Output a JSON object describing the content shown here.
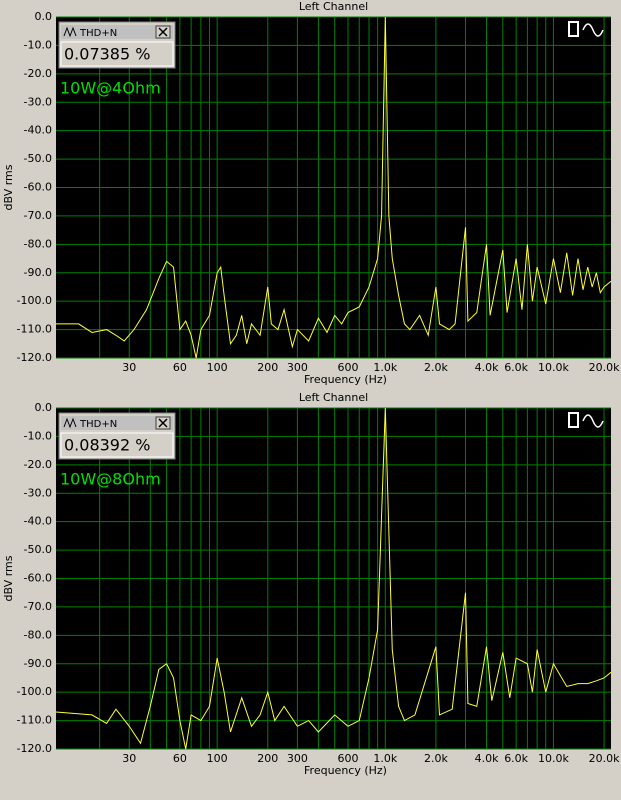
{
  "chart_data": [
    {
      "type": "line",
      "title": "Left Channel",
      "ylabel": "dBV rms",
      "xlabel": "Frequency (Hz)",
      "meter_title": "THD+N",
      "meter_value": "0.07385 %",
      "annotation": "10W@4Ohm",
      "xscale": "log",
      "grid": true,
      "color": "#ffff33",
      "xlim": [
        11,
        22000
      ],
      "ylim": [
        -120,
        0
      ],
      "xticks": [
        30,
        60,
        100,
        200,
        300,
        600,
        {
          "value": 1000,
          "label": "1.0k"
        },
        {
          "value": 2000,
          "label": "2.0k"
        },
        {
          "value": 4000,
          "label": "4.0k"
        },
        {
          "value": 6000,
          "label": "6.0k"
        },
        {
          "value": 10000,
          "label": "10.0k"
        },
        {
          "value": 20000,
          "label": "20.0k"
        }
      ],
      "yticks": [
        {
          "value": 0,
          "label": "0.0"
        },
        {
          "value": -10,
          "label": "-10.0"
        },
        {
          "value": -20,
          "label": "-20.0"
        },
        {
          "value": -30,
          "label": "-30.0"
        },
        {
          "value": -40,
          "label": "-40.0"
        },
        {
          "value": -50,
          "label": "-50.0"
        },
        {
          "value": -60,
          "label": "-60.0"
        },
        {
          "value": -70,
          "label": "-70.0"
        },
        {
          "value": -80,
          "label": "-80.0"
        },
        {
          "value": -90,
          "label": "-90.0"
        },
        {
          "value": -100,
          "label": "-100.0"
        },
        {
          "value": -110,
          "label": "-110.0"
        },
        {
          "value": -120,
          "label": "-120.0"
        }
      ],
      "x": [
        11,
        15,
        18,
        22,
        25,
        28,
        32,
        38,
        45,
        50,
        55,
        60,
        65,
        70,
        75,
        80,
        90,
        100,
        105,
        110,
        120,
        130,
        140,
        150,
        160,
        180,
        200,
        210,
        230,
        250,
        280,
        300,
        350,
        400,
        450,
        500,
        550,
        600,
        700,
        800,
        900,
        950,
        1000,
        1050,
        1100,
        1200,
        1300,
        1400,
        1600,
        1800,
        2000,
        2100,
        2400,
        2600,
        3000,
        3100,
        3500,
        4000,
        4200,
        5000,
        5300,
        6000,
        6500,
        7000,
        7500,
        8000,
        9000,
        10000,
        11000,
        12000,
        13000,
        14000,
        15000,
        16000,
        17000,
        18000,
        19000,
        20000,
        22000
      ],
      "values": [
        -108,
        -108,
        -111,
        -110,
        -112,
        -114,
        -110,
        -103,
        -92,
        -86,
        -88,
        -110,
        -107,
        -112,
        -120,
        -110,
        -105,
        -90,
        -88,
        -98,
        -115,
        -112,
        -105,
        -115,
        -108,
        -112,
        -95,
        -108,
        -110,
        -103,
        -116,
        -110,
        -114,
        -106,
        -111,
        -105,
        -108,
        -104,
        -102,
        -95,
        -85,
        -70,
        0,
        -70,
        -85,
        -98,
        -108,
        -110,
        -105,
        -112,
        -95,
        -108,
        -110,
        -108,
        -74,
        -107,
        -104,
        -80,
        -105,
        -82,
        -104,
        -85,
        -103,
        -80,
        -100,
        -88,
        -101,
        -85,
        -97,
        -83,
        -98,
        -85,
        -96,
        -88,
        -95,
        -90,
        -97,
        -95,
        -93
      ]
    },
    {
      "type": "line",
      "title": "Left Channel",
      "ylabel": "dBV rms",
      "xlabel": "Frequency (Hz)",
      "meter_title": "THD+N",
      "meter_value": "0.08392 %",
      "annotation": "10W@8Ohm",
      "xscale": "log",
      "grid": true,
      "color": "#ffff33",
      "xlim": [
        11,
        22000
      ],
      "ylim": [
        -120,
        0
      ],
      "xticks": [
        30,
        60,
        100,
        200,
        300,
        600,
        {
          "value": 1000,
          "label": "1.0k"
        },
        {
          "value": 2000,
          "label": "2.0k"
        },
        {
          "value": 4000,
          "label": "4.0k"
        },
        {
          "value": 6000,
          "label": "6.0k"
        },
        {
          "value": 10000,
          "label": "10.0k"
        },
        {
          "value": 20000,
          "label": "20.0k"
        }
      ],
      "yticks": [
        {
          "value": 0,
          "label": "0.0"
        },
        {
          "value": -10,
          "label": "-10.0"
        },
        {
          "value": -20,
          "label": "-20.0"
        },
        {
          "value": -30,
          "label": "-30.0"
        },
        {
          "value": -40,
          "label": "-40.0"
        },
        {
          "value": -50,
          "label": "-50.0"
        },
        {
          "value": -60,
          "label": "-60.0"
        },
        {
          "value": -70,
          "label": "-70.0"
        },
        {
          "value": -80,
          "label": "-80.0"
        },
        {
          "value": -90,
          "label": "-90.0"
        },
        {
          "value": -100,
          "label": "-100.0"
        },
        {
          "value": -110,
          "label": "-110.0"
        },
        {
          "value": -120,
          "label": "-120.0"
        }
      ],
      "x": [
        11,
        18,
        22,
        25,
        30,
        35,
        40,
        45,
        50,
        55,
        60,
        65,
        70,
        80,
        90,
        100,
        110,
        120,
        140,
        160,
        180,
        200,
        220,
        250,
        300,
        350,
        400,
        500,
        600,
        700,
        800,
        900,
        1000,
        1100,
        1200,
        1300,
        1500,
        2000,
        2100,
        2500,
        3000,
        3100,
        3500,
        4000,
        4300,
        5000,
        5500,
        6000,
        7000,
        7500,
        8000,
        9000,
        10000,
        12000,
        14000,
        16000,
        18000,
        20000,
        22000
      ],
      "values": [
        -107,
        -108,
        -111,
        -106,
        -112,
        -118,
        -105,
        -92,
        -90,
        -95,
        -110,
        -120,
        -108,
        -110,
        -105,
        -88,
        -100,
        -114,
        -102,
        -112,
        -108,
        -100,
        -110,
        -105,
        -112,
        -110,
        -114,
        -108,
        -112,
        -110,
        -95,
        -78,
        0,
        -85,
        -105,
        -110,
        -108,
        -84,
        -108,
        -106,
        -65,
        -104,
        -105,
        -84,
        -103,
        -86,
        -102,
        -88,
        -90,
        -100,
        -85,
        -100,
        -90,
        -98,
        -97,
        -97,
        -96,
        -95,
        -93
      ]
    }
  ]
}
